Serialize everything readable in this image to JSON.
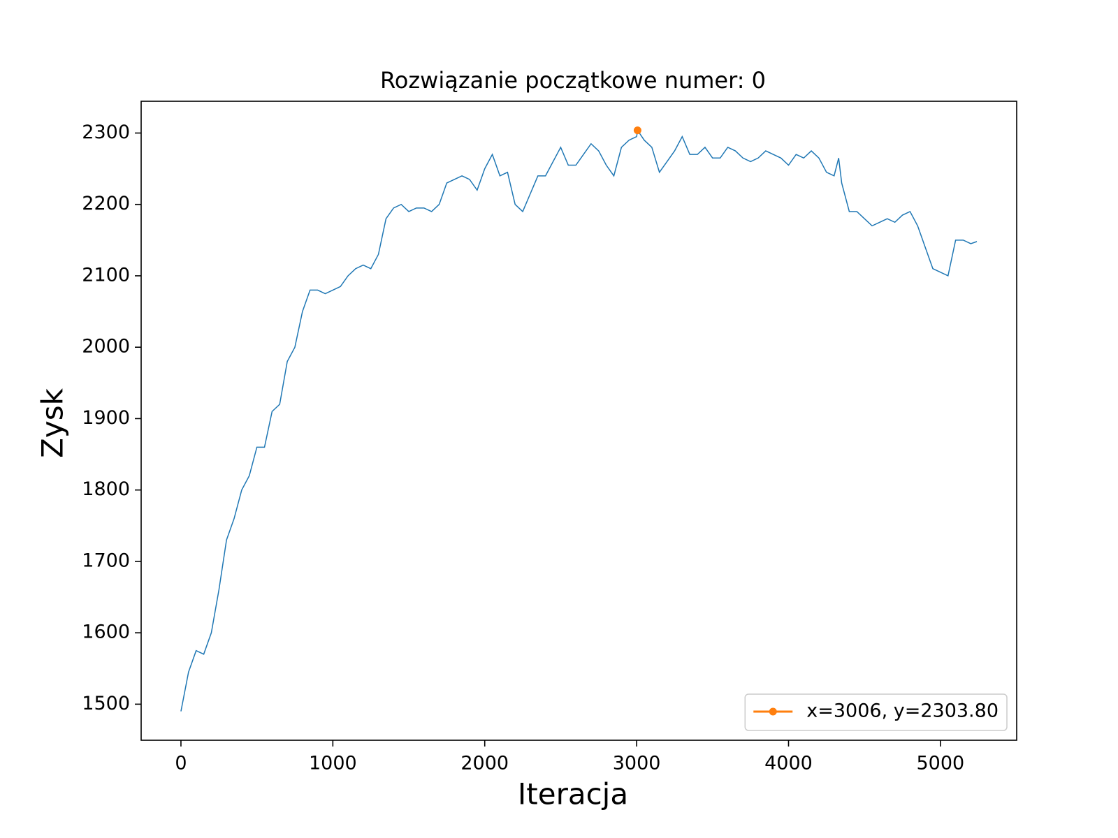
{
  "chart_data": {
    "type": "line",
    "title": "Rozwiązanie początkowe numer: 0",
    "x_label": "Iteracja",
    "y_label": "Zysk",
    "xlim": [
      -262,
      5502
    ],
    "ylim": [
      1449.5,
      2344.5
    ],
    "xticks": [
      0,
      1000,
      2000,
      3000,
      4000,
      5000
    ],
    "yticks": [
      1500,
      1600,
      1700,
      1800,
      1900,
      2000,
      2100,
      2200,
      2300
    ],
    "grid": false,
    "legend": "lower right",
    "series": [
      {
        "color": "#1f77b4",
        "marker": false,
        "x": [
          0,
          50,
          100,
          150,
          200,
          250,
          300,
          350,
          400,
          450,
          500,
          550,
          600,
          650,
          700,
          750,
          800,
          850,
          900,
          950,
          1000,
          1050,
          1100,
          1150,
          1200,
          1250,
          1300,
          1350,
          1400,
          1450,
          1500,
          1550,
          1600,
          1650,
          1700,
          1750,
          1800,
          1850,
          1900,
          1950,
          2000,
          2050,
          2100,
          2150,
          2200,
          2250,
          2300,
          2350,
          2400,
          2450,
          2500,
          2550,
          2600,
          2650,
          2700,
          2750,
          2800,
          2850,
          2900,
          2950,
          3000,
          3006,
          3050,
          3100,
          3150,
          3200,
          3250,
          3300,
          3350,
          3400,
          3450,
          3500,
          3550,
          3600,
          3650,
          3700,
          3750,
          3800,
          3850,
          3900,
          3950,
          4000,
          4050,
          4100,
          4150,
          4200,
          4250,
          4300,
          4330,
          4350,
          4400,
          4450,
          4500,
          4550,
          4600,
          4650,
          4700,
          4750,
          4800,
          4850,
          4900,
          4950,
          5000,
          5050,
          5100,
          5150,
          5200,
          5240
        ],
        "values": [
          1490,
          1545,
          1575,
          1570,
          1600,
          1660,
          1730,
          1760,
          1800,
          1820,
          1860,
          1860,
          1910,
          1920,
          1980,
          2000,
          2050,
          2080,
          2080,
          2075,
          2080,
          2085,
          2100,
          2110,
          2115,
          2110,
          2130,
          2180,
          2195,
          2200,
          2190,
          2195,
          2195,
          2190,
          2200,
          2230,
          2235,
          2240,
          2235,
          2220,
          2250,
          2270,
          2240,
          2245,
          2200,
          2190,
          2215,
          2240,
          2240,
          2260,
          2280,
          2255,
          2255,
          2270,
          2285,
          2275,
          2255,
          2240,
          2280,
          2290,
          2295,
          2303.8,
          2290,
          2280,
          2245,
          2260,
          2275,
          2295,
          2270,
          2270,
          2280,
          2265,
          2265,
          2280,
          2275,
          2265,
          2260,
          2265,
          2275,
          2270,
          2265,
          2255,
          2270,
          2265,
          2275,
          2265,
          2245,
          2240,
          2265,
          2230,
          2190,
          2190,
          2180,
          2170,
          2175,
          2180,
          2175,
          2185,
          2190,
          2170,
          2140,
          2110,
          2105,
          2100,
          2150,
          2150,
          2145,
          2148
        ]
      },
      {
        "name": "x=3006, y=2303.80",
        "color": "#ff7f0e",
        "marker": true,
        "x": [
          3006
        ],
        "values": [
          2303.8
        ]
      }
    ]
  }
}
